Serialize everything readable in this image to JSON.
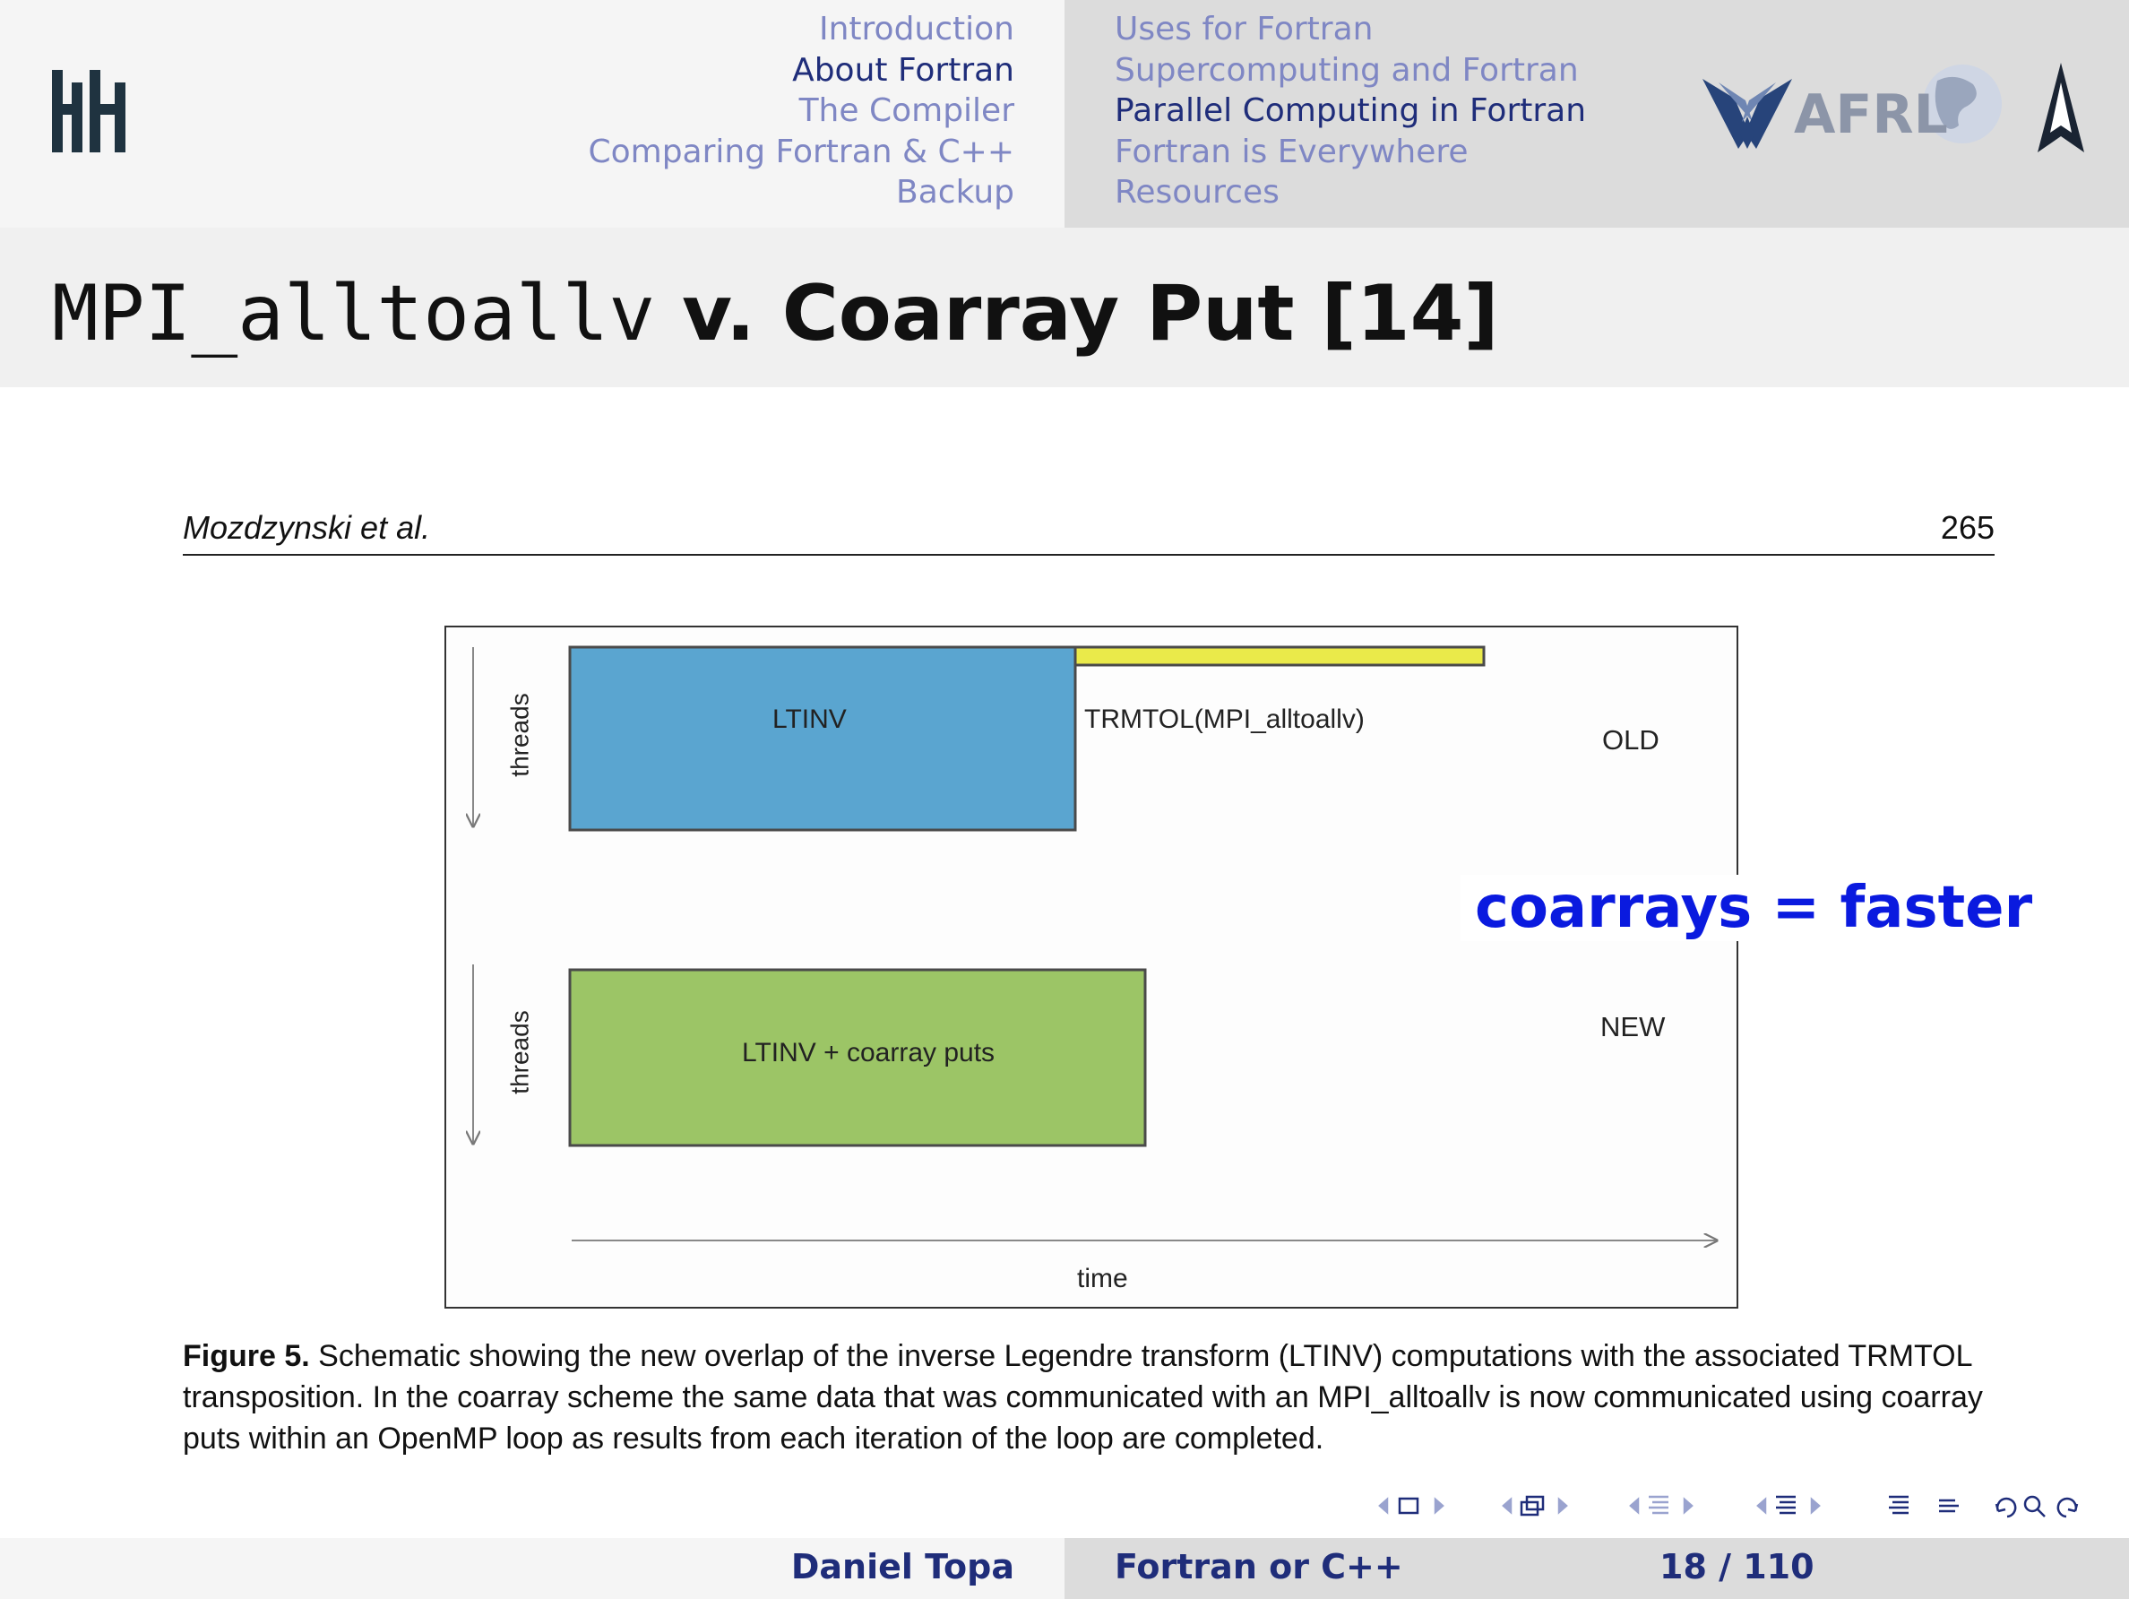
{
  "header": {
    "nav_left": [
      "Introduction",
      "About Fortran",
      "The Compiler",
      "Comparing Fortran & C++",
      "Backup"
    ],
    "nav_right": [
      "Uses for Fortran",
      "Supercomputing and Fortran",
      "Parallel Computing in Fortran",
      "Fortran is Everywhere",
      "Resources"
    ],
    "active_left": "About Fortran",
    "active_right": "Parallel Computing in Fortran",
    "logo_text": "AFRL",
    "colors": {
      "active": "#1f2d7a",
      "inactive": "#7f87c4"
    }
  },
  "slide": {
    "title_code": "MPI_alltoallv",
    "title_rest": " v. Coarray Put [14]"
  },
  "paper": {
    "author": "Mozdzynski et al.",
    "page": "265"
  },
  "figure": {
    "threads_label_top": "threads",
    "threads_label_bottom": "threads",
    "old_block_label": "LTINV",
    "old_comm_label": "TRMTOL(MPI_alltoallv)",
    "old_tag": "OLD",
    "new_block_label": "LTINV + coarray puts",
    "new_tag": "NEW",
    "time_label": "time",
    "colors": {
      "ltinv": "#5aa5d0",
      "comm": "#eaea4a",
      "new": "#9cc566"
    }
  },
  "callout": "coarrays = faster",
  "caption": {
    "label": "Figure 5.",
    "text": " Schematic showing the new overlap of the inverse Legendre transform (LTINV) computations with the associated TRMTOL transposition. In the coarray scheme the same data that was communicated with an MPI_alltoallv is now communicated using coarray puts  within an OpenMP loop as results from each iteration of the loop are completed."
  },
  "footer": {
    "author": "Daniel Topa",
    "talk": "Fortran or C++",
    "page": "18 / 110"
  }
}
